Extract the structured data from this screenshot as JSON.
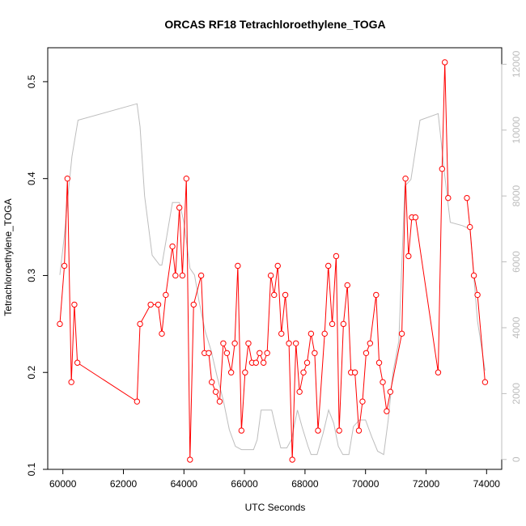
{
  "chart_data": {
    "type": "line",
    "title": "ORCAS RF18 Tetrachloroethylene_TOGA",
    "xlabel": "UTC Seconds",
    "ylabel": "Tetrachloroethylene_TOGA",
    "y2label": "",
    "xlim": [
      59500,
      74500
    ],
    "ylim": [
      0.1,
      0.535
    ],
    "y2lim": [
      -300,
      12500
    ],
    "x_ticks": [
      60000,
      62000,
      64000,
      66000,
      68000,
      70000,
      72000,
      74000
    ],
    "y_ticks": [
      0.1,
      0.2,
      0.3,
      0.4,
      0.5
    ],
    "y2_ticks": [
      0,
      2000,
      4000,
      6000,
      8000,
      10000,
      12000
    ],
    "grid": false,
    "colors": {
      "series": "#ff0000",
      "secondary": "#bdbdbd",
      "axis": "#000000"
    },
    "series": [
      {
        "axis": "left",
        "marker": "circle",
        "segments": [
          [
            [
              59900,
              0.25
            ],
            [
              60050,
              0.31
            ],
            [
              60150,
              0.4
            ],
            [
              60280,
              0.19
            ],
            [
              60380,
              0.27
            ],
            [
              60480,
              0.21
            ],
            [
              62450,
              0.17
            ],
            [
              62550,
              0.25
            ],
            [
              62900,
              0.27
            ],
            [
              63150,
              0.27
            ],
            [
              63270,
              0.24
            ],
            [
              63400,
              0.28
            ],
            [
              63620,
              0.33
            ],
            [
              63720,
              0.3
            ],
            [
              63850,
              0.37
            ],
            [
              63950,
              0.3
            ],
            [
              64080,
              0.4
            ],
            [
              64200,
              0.11
            ],
            [
              64320,
              0.27
            ],
            [
              64570,
              0.3
            ],
            [
              64680,
              0.22
            ],
            [
              64820,
              0.22
            ],
            [
              64920,
              0.19
            ],
            [
              65050,
              0.18
            ],
            [
              65180,
              0.17
            ],
            [
              65300,
              0.23
            ],
            [
              65420,
              0.22
            ],
            [
              65560,
              0.2
            ],
            [
              65680,
              0.23
            ],
            [
              65780,
              0.31
            ],
            [
              65900,
              0.14
            ],
            [
              66020,
              0.2
            ],
            [
              66130,
              0.23
            ],
            [
              66250,
              0.21
            ],
            [
              66380,
              0.21
            ],
            [
              66500,
              0.22
            ],
            [
              66630,
              0.21
            ],
            [
              66750,
              0.22
            ],
            [
              66870,
              0.3
            ],
            [
              66980,
              0.28
            ],
            [
              67100,
              0.31
            ],
            [
              67220,
              0.24
            ],
            [
              67350,
              0.28
            ],
            [
              67470,
              0.23
            ],
            [
              67580,
              0.11
            ],
            [
              67700,
              0.23
            ],
            [
              67820,
              0.18
            ],
            [
              67950,
              0.2
            ],
            [
              68070,
              0.21
            ],
            [
              68200,
              0.24
            ],
            [
              68320,
              0.22
            ],
            [
              68430,
              0.14
            ],
            [
              68650,
              0.24
            ],
            [
              68770,
              0.31
            ],
            [
              68900,
              0.25
            ],
            [
              69030,
              0.32
            ],
            [
              69130,
              0.14
            ],
            [
              69270,
              0.25
            ],
            [
              69400,
              0.29
            ],
            [
              69520,
              0.2
            ],
            [
              69650,
              0.2
            ],
            [
              69780,
              0.14
            ],
            [
              69900,
              0.17
            ],
            [
              70020,
              0.22
            ],
            [
              70150,
              0.23
            ],
            [
              70350,
              0.28
            ],
            [
              70450,
              0.21
            ],
            [
              70570,
              0.19
            ],
            [
              70700,
              0.16
            ],
            [
              70820,
              0.18
            ],
            [
              71200,
              0.24
            ],
            [
              71320,
              0.4
            ],
            [
              71420,
              0.32
            ],
            [
              71530,
              0.36
            ],
            [
              71650,
              0.36
            ],
            [
              72400,
              0.2
            ],
            [
              72530,
              0.41
            ],
            [
              72620,
              0.52
            ],
            [
              72730,
              0.38
            ]
          ],
          [
            [
              73350,
              0.38
            ],
            [
              73450,
              0.35
            ],
            [
              73580,
              0.3
            ],
            [
              73700,
              0.28
            ],
            [
              73950,
              0.19
            ]
          ]
        ]
      },
      {
        "axis": "right",
        "marker": "none",
        "segments": [
          [
            [
              59900,
              5600
            ],
            [
              60050,
              6800
            ],
            [
              60200,
              8300
            ],
            [
              60300,
              9200
            ],
            [
              60500,
              10300
            ],
            [
              62450,
              10800
            ],
            [
              62550,
              10100
            ],
            [
              62700,
              8000
            ],
            [
              62950,
              6200
            ],
            [
              63200,
              5900
            ],
            [
              63270,
              5900
            ],
            [
              63400,
              6600
            ],
            [
              63620,
              7800
            ],
            [
              63850,
              7800
            ],
            [
              64000,
              7200
            ],
            [
              64200,
              5800
            ],
            [
              64350,
              5600
            ],
            [
              64500,
              4800
            ],
            [
              64700,
              3900
            ],
            [
              64900,
              3300
            ],
            [
              65100,
              2500
            ],
            [
              65300,
              1800
            ],
            [
              65500,
              900
            ],
            [
              65700,
              400
            ],
            [
              65900,
              300
            ],
            [
              66100,
              300
            ],
            [
              66300,
              300
            ],
            [
              66420,
              600
            ],
            [
              66550,
              1500
            ],
            [
              66700,
              1500
            ],
            [
              66900,
              1500
            ],
            [
              67050,
              900
            ],
            [
              67200,
              350
            ],
            [
              67400,
              350
            ],
            [
              67550,
              600
            ],
            [
              67750,
              1500
            ],
            [
              67900,
              1000
            ],
            [
              68100,
              400
            ],
            [
              68200,
              150
            ],
            [
              68400,
              150
            ],
            [
              68600,
              800
            ],
            [
              68780,
              1500
            ],
            [
              68950,
              1100
            ],
            [
              69100,
              400
            ],
            [
              69250,
              150
            ],
            [
              69450,
              150
            ],
            [
              69600,
              1000
            ],
            [
              69800,
              1200
            ],
            [
              70000,
              1200
            ],
            [
              70200,
              700
            ],
            [
              70400,
              250
            ],
            [
              70600,
              150
            ],
            [
              70750,
              1200
            ],
            [
              70900,
              2600
            ],
            [
              71100,
              3600
            ],
            [
              71300,
              8300
            ],
            [
              71500,
              8500
            ],
            [
              71800,
              10300
            ],
            [
              72400,
              10500
            ],
            [
              72530,
              9400
            ],
            [
              72620,
              8600
            ],
            [
              72800,
              7200
            ],
            [
              73200,
              7100
            ],
            [
              73450,
              7000
            ],
            [
              73700,
              4200
            ],
            [
              73950,
              2700
            ]
          ]
        ]
      }
    ]
  }
}
